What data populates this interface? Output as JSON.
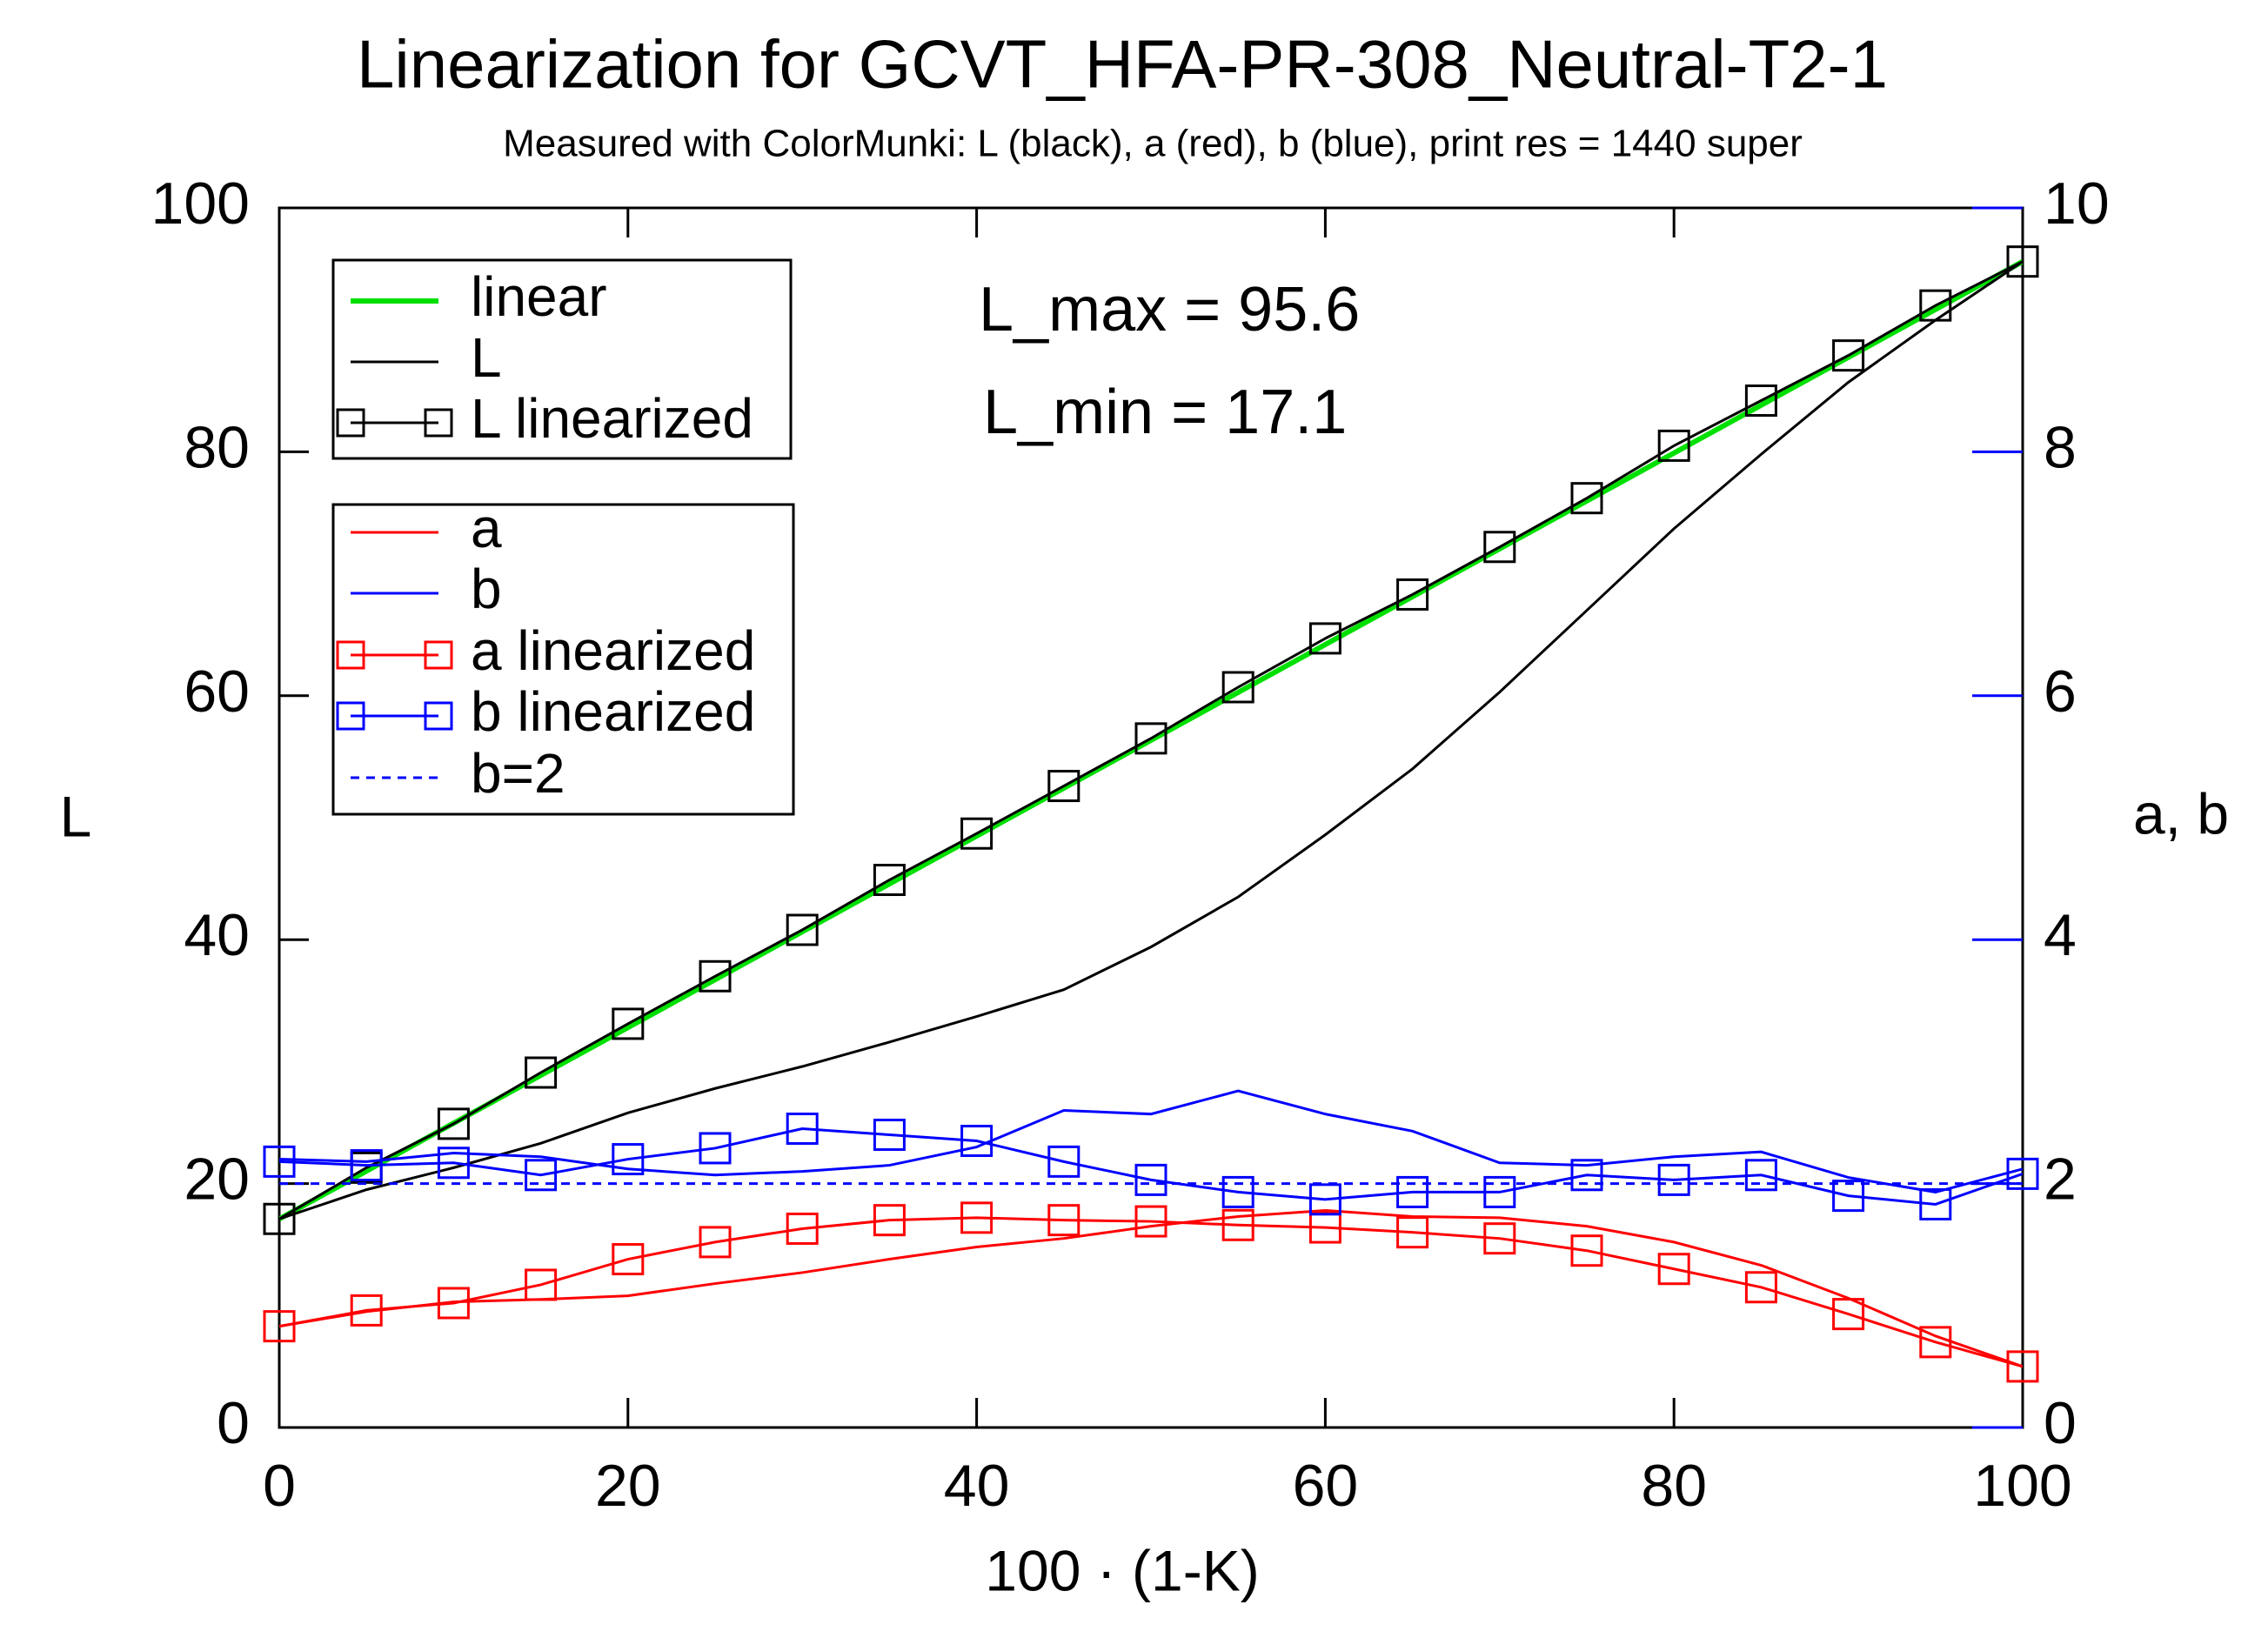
{
  "chart_data": {
    "type": "line",
    "title": "Linearization for GCVT_HFA-PR-308_Neutral-T2-1",
    "subtitle": "Measured with ColorMunki: L (black), a (red), b (blue), print res = 1440 super",
    "x_label": "100 · (1-K)",
    "y_label": "L",
    "y2_label": "a, b",
    "annotations": [
      "L_max = 95.6",
      "L_min = 17.1"
    ],
    "x": [
      0,
      5,
      10,
      15,
      20,
      25,
      30,
      35,
      40,
      45,
      50,
      55,
      60,
      65,
      70,
      75,
      80,
      85,
      90,
      95,
      100
    ],
    "xlim": [
      0,
      100
    ],
    "xticks": [
      0,
      20,
      40,
      60,
      80,
      100
    ],
    "ylim": [
      0,
      100
    ],
    "yticks": [
      0,
      20,
      40,
      60,
      80,
      100
    ],
    "y2lim": [
      0,
      10
    ],
    "y2ticks": [
      0,
      2,
      4,
      6,
      8,
      10
    ],
    "y2_color": "#0000ff",
    "series": [
      {
        "name": "linear",
        "color": "#00e000",
        "x": [
          0,
          100
        ],
        "values": [
          17.1,
          95.6
        ]
      },
      {
        "name": "L",
        "color": "#000000",
        "values": [
          17.1,
          19.5,
          21.3,
          23.3,
          25.8,
          27.8,
          29.6,
          31.6,
          33.7,
          35.9,
          39.4,
          43.5,
          48.6,
          54.0,
          60.3,
          67.0,
          73.7,
          79.8,
          85.7,
          90.8,
          95.6
        ]
      },
      {
        "name": "L linearized",
        "color": "#000000",
        "markers": true,
        "values": [
          17.1,
          21.3,
          24.9,
          29.1,
          33.1,
          37.0,
          40.8,
          44.9,
          48.7,
          52.6,
          56.5,
          60.7,
          64.7,
          68.3,
          72.2,
          76.2,
          80.5,
          84.2,
          87.9,
          92.0,
          95.6
        ]
      },
      {
        "name": "a",
        "color": "#ff0000",
        "axis": "y2",
        "values": [
          0.83,
          0.95,
          1.03,
          1.05,
          1.08,
          1.18,
          1.27,
          1.38,
          1.48,
          1.55,
          1.65,
          1.73,
          1.78,
          1.73,
          1.72,
          1.65,
          1.52,
          1.33,
          1.06,
          0.75,
          0.5
        ]
      },
      {
        "name": "b",
        "color": "#0000ff",
        "axis": "y2",
        "values": [
          2.2,
          2.18,
          2.25,
          2.22,
          2.12,
          2.07,
          2.1,
          2.15,
          2.3,
          2.6,
          2.57,
          2.76,
          2.57,
          2.43,
          2.17,
          2.15,
          2.22,
          2.26,
          2.05,
          1.93,
          2.12
        ]
      },
      {
        "name": "a linearized",
        "color": "#ff0000",
        "axis": "y2",
        "markers": true,
        "values": [
          0.83,
          0.96,
          1.02,
          1.17,
          1.38,
          1.52,
          1.63,
          1.7,
          1.72,
          1.7,
          1.69,
          1.66,
          1.64,
          1.6,
          1.55,
          1.45,
          1.3,
          1.15,
          0.93,
          0.7,
          0.5
        ]
      },
      {
        "name": "b linearized",
        "color": "#0000ff",
        "axis": "y2",
        "markers": true,
        "values": [
          2.18,
          2.15,
          2.17,
          2.07,
          2.2,
          2.29,
          2.45,
          2.4,
          2.35,
          2.18,
          2.03,
          1.93,
          1.87,
          1.93,
          1.93,
          2.07,
          2.03,
          2.07,
          1.9,
          1.83,
          2.08
        ]
      },
      {
        "name": "b=2",
        "color": "#0000ff",
        "axis": "y2",
        "dashed": true,
        "x": [
          0,
          100
        ],
        "values": [
          2,
          2
        ]
      }
    ]
  }
}
